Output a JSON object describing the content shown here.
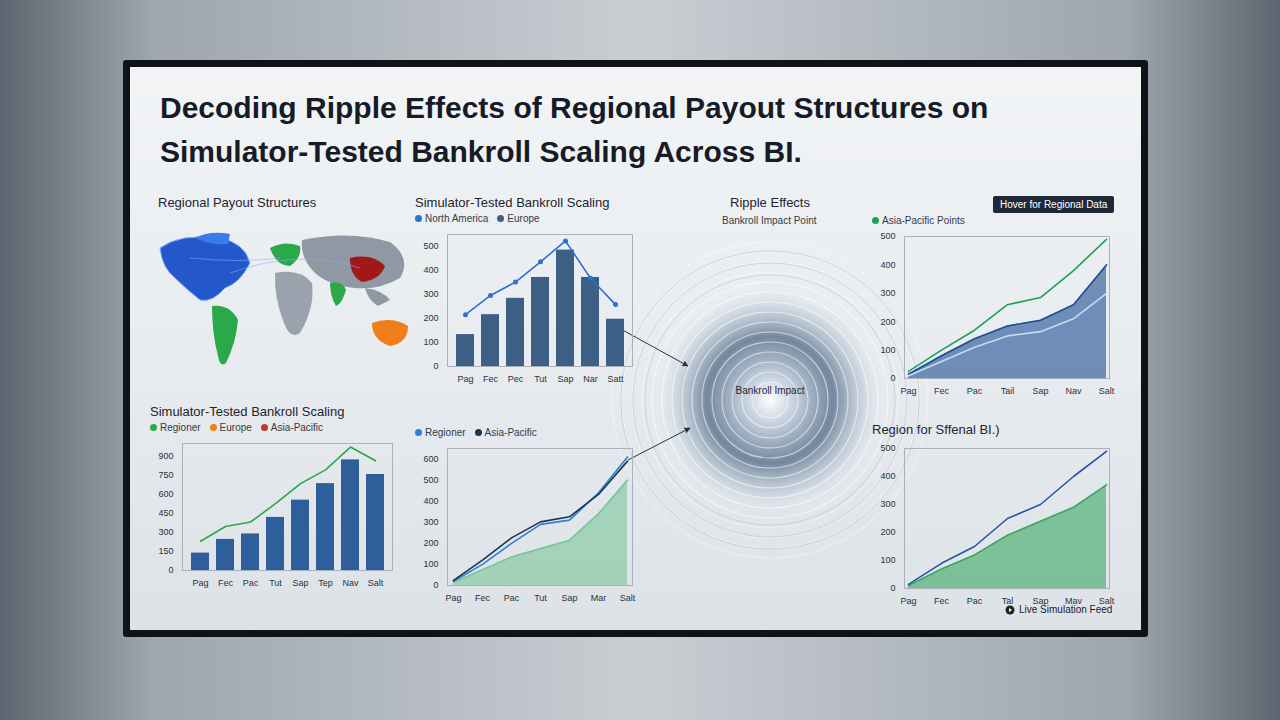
{
  "title": "Decoding Ripple Effects of Regional Payout Structures on Simulator-Tested Bankroll Scaling Across BI.",
  "map_panel": {
    "title": "Regional Payout Structures"
  },
  "ripple_panel": {
    "title": "Ripple Effects",
    "subtitle": "Bankroll Impact Point",
    "center_label": "Bankroll Impact"
  },
  "badge": "Hover for Regional Data",
  "footer": "Live Simulation Feed",
  "chart_data": [
    {
      "type": "bar",
      "title": "Simulator-Tested Bankroll Scaling",
      "categories": [
        "Pag",
        "Fec",
        "Pec",
        "Tut",
        "Sap",
        "Nar",
        "Satt"
      ],
      "series": [
        {
          "name": "North America",
          "type": "line",
          "color": "#2f6fd0",
          "marker": "circle",
          "values": [
            216,
            296,
            352,
            436,
            523,
            368,
            258
          ]
        },
        {
          "name": "Europe",
          "type": "bar",
          "color": "#3d5f86",
          "values": [
            133,
            216,
            284,
            371,
            485,
            371,
            197
          ]
        }
      ],
      "ylim": [
        0,
        550
      ],
      "yticks": [
        0,
        100,
        200,
        300,
        400,
        500
      ],
      "legend": "top"
    },
    {
      "type": "line",
      "categories": [
        "Pag",
        "Fec",
        "Pac",
        "Tail",
        "Sap",
        "Nav",
        "Salt"
      ],
      "series": [
        {
          "name": "Asia-Pacific Points",
          "type": "line",
          "color": "#1f9e5a",
          "values": [
            25,
            100,
            170,
            260,
            285,
            380,
            490
          ]
        },
        {
          "type": "area",
          "color": "#1c4f93",
          "values": [
            15,
            80,
            140,
            185,
            205,
            260,
            400
          ]
        },
        {
          "type": "line",
          "color": "#c9dbf2",
          "values": [
            10,
            60,
            110,
            150,
            165,
            210,
            300
          ]
        }
      ],
      "ylim": [
        0,
        500
      ],
      "yticks": [
        0,
        100,
        200,
        300,
        400,
        500
      ],
      "legend": "top"
    },
    {
      "type": "bar",
      "title": "Simulator-Tested Bankroll Scaling",
      "categories": [
        "Pag",
        "Fec",
        "Pac",
        "Tut",
        "Sap",
        "Tep",
        "Nav",
        "Salt"
      ],
      "series": [
        {
          "type": "bar",
          "color": "#2f5f9a",
          "values": [
            137,
            245,
            288,
            418,
            554,
            684,
            871,
            756
          ]
        },
        {
          "name": "Regioner",
          "type": "line",
          "color": "#2aa84a",
          "values": [
            230,
            346,
            382,
            526,
            684,
            792,
            972,
            864
          ]
        },
        {
          "name": "Europe",
          "type": "line",
          "color": "#f07f1a",
          "values": [
            null,
            null,
            null,
            null,
            null,
            null,
            null,
            null
          ]
        },
        {
          "name": "Asia-Pacific",
          "type": "line",
          "color": "#c0392b",
          "values": [
            null,
            null,
            null,
            null,
            null,
            null,
            null,
            null
          ]
        }
      ],
      "ylim": [
        0,
        1000
      ],
      "yticks": [
        0,
        150,
        300,
        450,
        600,
        750,
        900
      ],
      "legend": "top"
    },
    {
      "type": "line",
      "categories": [
        "Pag",
        "Fec",
        "Pac",
        "Tut",
        "Sap",
        "Mar",
        "Salt"
      ],
      "series": [
        {
          "type": "area",
          "color": "#7cc49a",
          "values": [
            15,
            75,
            135,
            175,
            215,
            340,
            500
          ]
        },
        {
          "name": "Regioner",
          "type": "line",
          "color": "#2f7fd6",
          "values": [
            20,
            100,
            200,
            290,
            310,
            440,
            610
          ]
        },
        {
          "name": "Asia-Pacific",
          "type": "line",
          "color": "#1e3550",
          "values": [
            24,
            120,
            226,
            302,
            326,
            432,
            590
          ]
        }
      ],
      "ylim": [
        0,
        650
      ],
      "yticks": [
        0,
        100,
        200,
        300,
        400,
        500,
        600
      ],
      "legend": "top"
    },
    {
      "type": "line",
      "title": "Region for Sffenal BI.)",
      "categories": [
        "Pag",
        "Fec",
        "Pac",
        "Tal",
        "Sap",
        "Mav",
        "Salt"
      ],
      "series": [
        {
          "type": "line",
          "color": "#2456a6",
          "values": [
            15,
            90,
            150,
            250,
            300,
            400,
            490
          ]
        },
        {
          "type": "area",
          "color": "#3aa864",
          "values": [
            10,
            70,
            120,
            190,
            240,
            290,
            370
          ]
        }
      ],
      "ylim": [
        0,
        500
      ],
      "yticks": [
        0,
        100,
        200,
        300,
        400,
        500
      ]
    }
  ]
}
